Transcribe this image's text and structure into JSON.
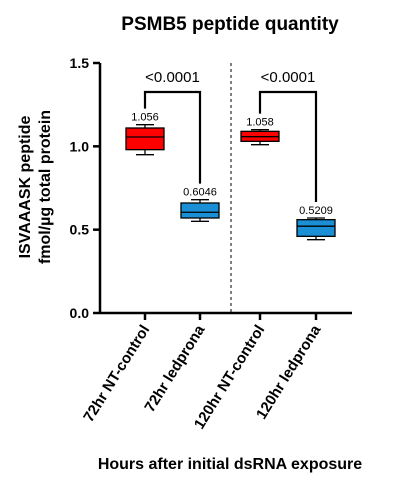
{
  "chart_data": {
    "type": "box",
    "title": "PSMB5 peptide quantity",
    "ylabel_line1": "ISVAAASK peptide",
    "ylabel_line2": "fmol/µg total protein",
    "xlabel": "Hours after initial dsRNA exposure",
    "ylim": [
      0,
      1.5
    ],
    "yticks": [
      "0.0",
      "0.5",
      "1.0",
      "1.5"
    ],
    "ytick_values": [
      0,
      0.5,
      1.0,
      1.5
    ],
    "categories": [
      "72hr NT-control",
      "72hr ledprona",
      "120hr NT-control",
      "120hr ledprona"
    ],
    "boxes": [
      {
        "category": "72hr NT-control",
        "min": 0.95,
        "q1": 0.98,
        "median": 1.056,
        "q3": 1.11,
        "max": 1.13,
        "label": "1.056",
        "color": "#ff0000"
      },
      {
        "category": "72hr ledprona",
        "min": 0.55,
        "q1": 0.57,
        "median": 0.6046,
        "q3": 0.66,
        "max": 0.68,
        "label": "0.6046",
        "color": "#1a8fd6"
      },
      {
        "category": "120hr NT-control",
        "min": 1.01,
        "q1": 1.03,
        "median": 1.058,
        "q3": 1.09,
        "max": 1.1,
        "label": "1.058",
        "color": "#ff0000"
      },
      {
        "category": "120hr ledprona",
        "min": 0.44,
        "q1": 0.46,
        "median": 0.5209,
        "q3": 0.56,
        "max": 0.57,
        "label": "0.5209",
        "color": "#1a8fd6"
      }
    ],
    "comparisons": [
      {
        "from": "72hr NT-control",
        "to": "72hr ledprona",
        "p_value": "<0.0001"
      },
      {
        "from": "120hr NT-control",
        "to": "120hr ledprona",
        "p_value": "<0.0001"
      }
    ],
    "divider": "dashed vertical line between 72hr and 120hr groups",
    "grid": false
  }
}
